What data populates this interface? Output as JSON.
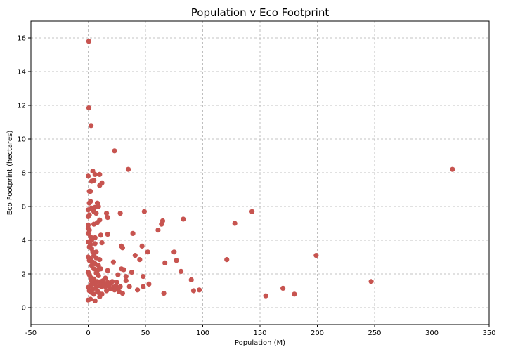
{
  "chart_data": {
    "type": "scatter",
    "title": "Population v Eco Footprint",
    "xlabel": "Population (M)",
    "ylabel": "Eco Footprint (hectares)",
    "xlim": [
      -50,
      350
    ],
    "ylim": [
      -1,
      17
    ],
    "xticks": [
      -50,
      0,
      50,
      100,
      150,
      200,
      250,
      300,
      350
    ],
    "yticks": [
      0,
      2,
      4,
      6,
      8,
      10,
      12,
      14,
      16
    ],
    "grid": true,
    "marker_color": "#c75450",
    "points": [
      [
        0.5,
        15.8
      ],
      [
        0.6,
        11.85
      ],
      [
        2.5,
        10.8
      ],
      [
        23,
        9.3
      ],
      [
        35,
        8.2
      ],
      [
        318,
        8.2
      ],
      [
        0,
        7.8
      ],
      [
        1,
        6.9
      ],
      [
        2,
        6.9
      ],
      [
        3,
        7.5
      ],
      [
        4,
        8.1
      ],
      [
        5,
        7.55
      ],
      [
        6,
        7.9
      ],
      [
        10,
        7.9
      ],
      [
        10,
        7.25
      ],
      [
        12,
        7.4
      ],
      [
        1,
        6.2
      ],
      [
        2,
        6.3
      ],
      [
        3,
        5.9
      ],
      [
        4,
        5.8
      ],
      [
        5,
        5.7
      ],
      [
        6,
        5.95
      ],
      [
        7,
        5.6
      ],
      [
        8,
        6.2
      ],
      [
        9,
        6.0
      ],
      [
        0,
        5.8
      ],
      [
        0,
        5.4
      ],
      [
        1,
        5.5
      ],
      [
        16,
        5.6
      ],
      [
        17,
        5.35
      ],
      [
        28,
        5.6
      ],
      [
        49,
        5.7
      ],
      [
        65,
        5.15
      ],
      [
        64,
        4.95
      ],
      [
        61,
        4.6
      ],
      [
        83,
        5.25
      ],
      [
        143,
        5.7
      ],
      [
        128,
        5.0
      ],
      [
        0,
        4.9
      ],
      [
        1,
        4.6
      ],
      [
        0,
        4.4
      ],
      [
        2,
        4.2
      ],
      [
        3,
        4.0
      ],
      [
        5,
        4.95
      ],
      [
        8,
        5.05
      ],
      [
        10,
        5.2
      ],
      [
        11,
        4.3
      ],
      [
        6,
        4.15
      ],
      [
        17,
        4.35
      ],
      [
        39,
        4.4
      ],
      [
        0,
        4.7
      ],
      [
        0,
        3.9
      ],
      [
        1,
        3.6
      ],
      [
        2,
        3.75
      ],
      [
        3,
        3.5
      ],
      [
        4,
        3.3
      ],
      [
        5,
        3.1
      ],
      [
        6,
        3.8
      ],
      [
        7,
        3.3
      ],
      [
        12,
        3.85
      ],
      [
        29,
        3.65
      ],
      [
        30,
        3.55
      ],
      [
        47,
        3.65
      ],
      [
        52,
        3.3
      ],
      [
        41,
        3.1
      ],
      [
        45,
        2.85
      ],
      [
        75,
        3.3
      ],
      [
        77,
        2.8
      ],
      [
        67,
        2.65
      ],
      [
        121,
        2.85
      ],
      [
        199,
        3.1
      ],
      [
        0,
        3.0
      ],
      [
        1,
        2.8
      ],
      [
        2,
        2.9
      ],
      [
        3,
        2.5
      ],
      [
        4,
        2.7
      ],
      [
        5,
        2.3
      ],
      [
        6,
        2.6
      ],
      [
        7,
        2.95
      ],
      [
        8,
        2.2
      ],
      [
        9,
        2.5
      ],
      [
        10,
        2.85
      ],
      [
        11,
        2.3
      ],
      [
        22,
        2.7
      ],
      [
        17,
        2.2
      ],
      [
        29,
        2.3
      ],
      [
        31,
        2.25
      ],
      [
        38,
        2.1
      ],
      [
        48,
        1.85
      ],
      [
        26,
        1.95
      ],
      [
        33,
        1.85
      ],
      [
        33,
        1.6
      ],
      [
        81,
        2.15
      ],
      [
        90,
        1.65
      ],
      [
        0,
        2.1
      ],
      [
        1,
        1.95
      ],
      [
        2,
        1.8
      ],
      [
        3,
        1.6
      ],
      [
        4,
        1.5
      ],
      [
        5,
        1.7
      ],
      [
        6,
        1.4
      ],
      [
        7,
        1.2
      ],
      [
        8,
        1.55
      ],
      [
        9,
        1.9
      ],
      [
        10,
        1.3
      ],
      [
        11,
        1.55
      ],
      [
        12,
        1.25
      ],
      [
        13,
        1.6
      ],
      [
        14,
        1.4
      ],
      [
        15,
        1.75
      ],
      [
        16,
        1.0
      ],
      [
        17,
        1.5
      ],
      [
        18,
        1.3
      ],
      [
        19,
        1.1
      ],
      [
        20,
        1.45
      ],
      [
        21,
        1.55
      ],
      [
        22,
        1.2
      ],
      [
        23,
        1.05
      ],
      [
        24,
        1.3
      ],
      [
        25,
        1.5
      ],
      [
        26,
        1.15
      ],
      [
        27,
        0.95
      ],
      [
        28,
        1.25
      ],
      [
        30,
        0.85
      ],
      [
        36,
        1.25
      ],
      [
        43,
        1.05
      ],
      [
        48,
        1.25
      ],
      [
        53,
        1.4
      ],
      [
        66,
        0.85
      ],
      [
        92,
        1.0
      ],
      [
        97,
        1.05
      ],
      [
        155,
        0.7
      ],
      [
        170,
        1.15
      ],
      [
        180,
        0.8
      ],
      [
        247,
        1.55
      ],
      [
        0,
        1.2
      ],
      [
        1,
        1.0
      ],
      [
        2,
        1.3
      ],
      [
        3,
        0.9
      ],
      [
        4,
        1.1
      ],
      [
        5,
        0.8
      ],
      [
        6,
        0.4
      ],
      [
        8,
        1.0
      ],
      [
        10,
        0.65
      ],
      [
        12,
        0.8
      ],
      [
        15,
        1.25
      ],
      [
        0,
        0.45
      ],
      [
        2,
        0.5
      ],
      [
        3,
        1.4
      ],
      [
        7,
        2.05
      ],
      [
        9,
        0.9
      ]
    ]
  }
}
